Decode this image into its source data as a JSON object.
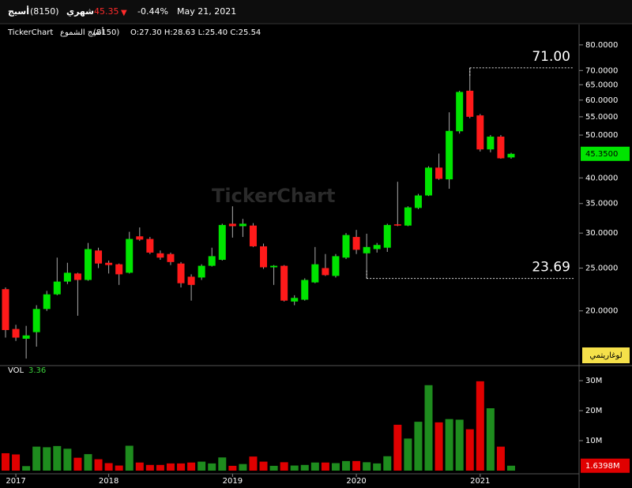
{
  "header": {
    "name": "أسيج",
    "code": "(8150)",
    "period": "شهري",
    "price": "45.35",
    "arrow": "▼",
    "change": "-0.44%",
    "date": "May 21, 2021"
  },
  "legend_line": {
    "brand": "TickerChart",
    "label": "أسيج الشموع",
    "code": "(8150)",
    "ohlc": "O:27.30 H:28.63 L:25.40 C:25.54"
  },
  "watermark": "TickerChart",
  "scale_button": "لوغاريتمي",
  "chart_data": [
    {
      "type": "candlestick",
      "log_scale": true,
      "up_color": "#00e400",
      "down_color": "#ff1a1a",
      "open": [
        22.4,
        18.2,
        17.3,
        17.9,
        20.2,
        21.8,
        23.3,
        24.3,
        23.5,
        27.4,
        25.7,
        25.5,
        24.4,
        29.5,
        29.1,
        27.0,
        26.9,
        25.6,
        23.9,
        23.8,
        25.3,
        26.1,
        31.5,
        31.1,
        31.2,
        28.0,
        25.1,
        25.3,
        21.0,
        21.2,
        23.2,
        25.0,
        24.0,
        26.4,
        29.4,
        27.0,
        27.6,
        27.8,
        31.4,
        31.2,
        34.2,
        36.5,
        42.2,
        39.7,
        51.0,
        63.0,
        55.4,
        46.4,
        49.6,
        44.5
      ],
      "high": [
        22.6,
        18.6,
        18.5,
        20.6,
        22.2,
        26.4,
        25.7,
        24.4,
        28.5,
        27.8,
        26.0,
        25.6,
        30.2,
        30.9,
        29.4,
        27.4,
        27.1,
        25.8,
        24.2,
        25.5,
        27.8,
        31.5,
        34.5,
        32.3,
        31.6,
        28.4,
        25.4,
        25.4,
        21.7,
        23.7,
        27.9,
        26.9,
        26.9,
        30.0,
        30.5,
        29.9,
        28.5,
        31.5,
        39.2,
        34.5,
        36.8,
        42.5,
        45.4,
        56.3,
        63.0,
        71.0,
        55.8,
        50.0,
        50.0,
        45.6
      ],
      "low": [
        17.4,
        17.1,
        15.6,
        16.6,
        20.0,
        21.7,
        23.0,
        19.5,
        23.4,
        25.0,
        24.3,
        22.9,
        24.3,
        28.8,
        26.9,
        26.1,
        25.4,
        22.6,
        21.1,
        23.5,
        25.2,
        26.0,
        29.3,
        29.4,
        27.9,
        24.9,
        22.9,
        21.0,
        20.6,
        21.1,
        23.1,
        24.0,
        23.8,
        26.2,
        26.9,
        23.69,
        27.1,
        27.2,
        31.1,
        31.1,
        34.0,
        36.4,
        39.6,
        37.8,
        50.4,
        54.6,
        45.9,
        45.7,
        44.2,
        44.2
      ],
      "close": [
        18.1,
        17.4,
        17.6,
        20.2,
        21.8,
        23.3,
        24.4,
        23.5,
        27.6,
        25.6,
        25.4,
        24.2,
        29.1,
        29.0,
        27.1,
        26.4,
        25.8,
        23.1,
        22.9,
        25.3,
        26.6,
        31.3,
        31.1,
        31.5,
        28.0,
        25.1,
        25.3,
        21.1,
        21.4,
        23.5,
        25.5,
        24.1,
        26.6,
        29.7,
        27.5,
        27.9,
        28.2,
        31.3,
        31.2,
        34.3,
        36.5,
        42.2,
        39.8,
        51.1,
        62.6,
        55.0,
        46.4,
        49.6,
        44.3,
        45.35
      ],
      "ylim": [
        15.1,
        84.0
      ],
      "yticks": [
        {
          "value": 80,
          "label": "80.0000"
        },
        {
          "value": 70,
          "label": "70.0000"
        },
        {
          "value": 65,
          "label": "65.0000"
        },
        {
          "value": 60,
          "label": "60.0000"
        },
        {
          "value": 55,
          "label": "55.0000"
        },
        {
          "value": 50,
          "label": "50.0000"
        },
        {
          "value": 40,
          "label": "40.0000"
        },
        {
          "value": 35,
          "label": "35.0000"
        },
        {
          "value": 30,
          "label": "30.0000"
        },
        {
          "value": 25,
          "label": "25.0000"
        },
        {
          "value": 20,
          "label": "20.0000"
        }
      ],
      "annotations": [
        {
          "value": 71,
          "label": "71.00"
        },
        {
          "value": 23.69,
          "label": "23.69"
        }
      ],
      "last_price": {
        "value": 45.35,
        "label": "45.3500"
      }
    },
    {
      "type": "volume",
      "title": "VOL",
      "title_value": "3.36",
      "up_color": "#1e8c1e",
      "down_color": "#e00000",
      "categories": [
        null,
        "2017",
        null,
        null,
        null,
        null,
        null,
        null,
        null,
        null,
        "2018",
        null,
        null,
        null,
        null,
        null,
        null,
        null,
        null,
        null,
        null,
        null,
        "2019",
        null,
        null,
        null,
        null,
        null,
        null,
        null,
        null,
        null,
        null,
        null,
        "2020",
        null,
        null,
        null,
        null,
        null,
        null,
        null,
        null,
        null,
        null,
        null,
        "2021",
        null,
        null,
        null
      ],
      "values": [
        5800000,
        5400000,
        1500000,
        8000000,
        7800000,
        8200000,
        7300000,
        4300000,
        5500000,
        3800000,
        2500000,
        1700000,
        8300000,
        2700000,
        1900000,
        1900000,
        2400000,
        2400000,
        2700000,
        3000000,
        2400000,
        4400000,
        1600000,
        2200000,
        4700000,
        3000000,
        1600000,
        2800000,
        1700000,
        1900000,
        2700000,
        2700000,
        2500000,
        3200000,
        3200000,
        2800000,
        2400000,
        4800000,
        15300000,
        10700000,
        16300000,
        28500000,
        16100000,
        17200000,
        17000000,
        13800000,
        29800000,
        20800000,
        8000000,
        1639800
      ],
      "ylim": [
        0,
        34500000
      ],
      "yticks": [
        {
          "value": 10000000,
          "label": "10M"
        },
        {
          "value": 20000000,
          "label": "20M"
        },
        {
          "value": 30000000,
          "label": "30M"
        }
      ],
      "last_value": {
        "value": 1639800,
        "label": "1.6398M"
      }
    }
  ]
}
